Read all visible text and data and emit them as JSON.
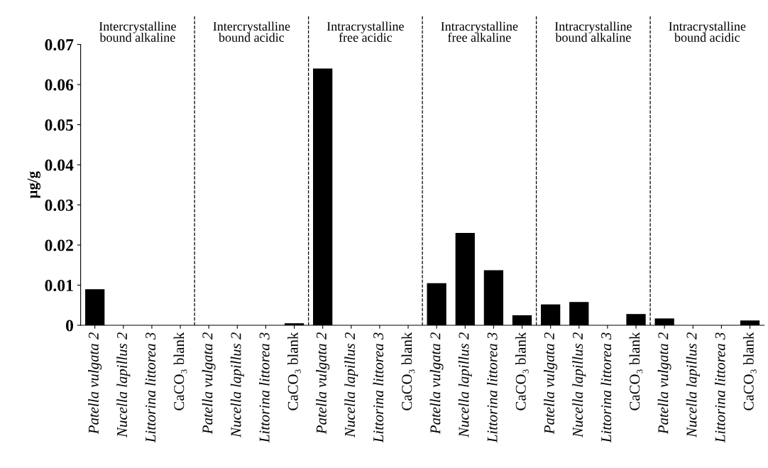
{
  "chart_data": {
    "type": "bar",
    "ylabel": "µg/g",
    "categories": [
      "Patella vulgata 2",
      "Nucella lapillus 2",
      "Littorina littorea 3",
      "CaCO₃ blank",
      "Patella vulgata 2",
      "Nucella lapillus 2",
      "Littorina littorea 3",
      "CaCO₃ blank",
      "Patella vulgata 2",
      "Nucella lapillus 2",
      "Littorina littorea 3",
      "CaCO₃ blank",
      "Patella vulgata 2",
      "Nucella lapillus 2",
      "Littorina littorea 3",
      "CaCO₃ blank",
      "Patella vulgata 2",
      "Nucella lapillus 2",
      "Littorina littorea 3",
      "CaCO₃ blank",
      "Patella vulgata 2",
      "Nucella lapillus 2",
      "Littorina littorea 3",
      "CaCO₃ blank"
    ],
    "values": [
      0.009,
      0,
      0,
      0,
      0,
      0,
      0,
      0.0005,
      0.064,
      0,
      0,
      0,
      0.0105,
      0.023,
      0.0137,
      0.0025,
      0.0052,
      0.0058,
      0,
      0.0028,
      0.0017,
      0,
      0,
      0.0012
    ],
    "color": "#000000",
    "ylim": [
      0,
      0.07
    ],
    "yticks": [
      0,
      0.01,
      0.02,
      0.03,
      0.04,
      0.05,
      0.06,
      0.07
    ],
    "grid": false,
    "annotations": [
      "Intercrystalline\nbound alkaline",
      "Intercrystalline\nbound acidic",
      "Intracrystalline\nfree acidic",
      "Intracrystalline\nfree alkaline",
      "Intracrystalline\nbound alkaline",
      "Intracrystalline\nbound acidic"
    ]
  }
}
